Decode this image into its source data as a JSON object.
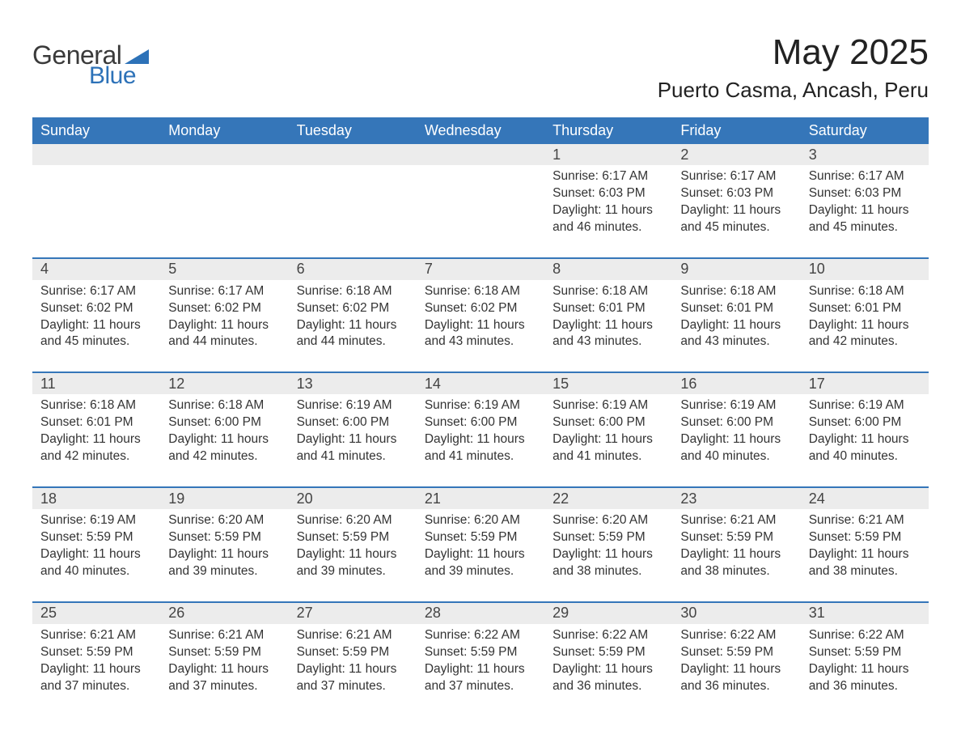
{
  "logo": {
    "text1": "General",
    "text2": "Blue",
    "shape_color": "#2d72b8"
  },
  "title": "May 2025",
  "location": "Puerto Casma, Ancash, Peru",
  "colors": {
    "header_bg": "#3576b9",
    "header_text": "#ffffff",
    "daynum_bg": "#ececec",
    "rule": "#3576b9",
    "body_text": "#333333"
  },
  "weekdays": [
    "Sunday",
    "Monday",
    "Tuesday",
    "Wednesday",
    "Thursday",
    "Friday",
    "Saturday"
  ],
  "weeks": [
    [
      null,
      null,
      null,
      null,
      {
        "n": "1",
        "sr": "6:17 AM",
        "ss": "6:03 PM",
        "dl": "11 hours and 46 minutes."
      },
      {
        "n": "2",
        "sr": "6:17 AM",
        "ss": "6:03 PM",
        "dl": "11 hours and 45 minutes."
      },
      {
        "n": "3",
        "sr": "6:17 AM",
        "ss": "6:03 PM",
        "dl": "11 hours and 45 minutes."
      }
    ],
    [
      {
        "n": "4",
        "sr": "6:17 AM",
        "ss": "6:02 PM",
        "dl": "11 hours and 45 minutes."
      },
      {
        "n": "5",
        "sr": "6:17 AM",
        "ss": "6:02 PM",
        "dl": "11 hours and 44 minutes."
      },
      {
        "n": "6",
        "sr": "6:18 AM",
        "ss": "6:02 PM",
        "dl": "11 hours and 44 minutes."
      },
      {
        "n": "7",
        "sr": "6:18 AM",
        "ss": "6:02 PM",
        "dl": "11 hours and 43 minutes."
      },
      {
        "n": "8",
        "sr": "6:18 AM",
        "ss": "6:01 PM",
        "dl": "11 hours and 43 minutes."
      },
      {
        "n": "9",
        "sr": "6:18 AM",
        "ss": "6:01 PM",
        "dl": "11 hours and 43 minutes."
      },
      {
        "n": "10",
        "sr": "6:18 AM",
        "ss": "6:01 PM",
        "dl": "11 hours and 42 minutes."
      }
    ],
    [
      {
        "n": "11",
        "sr": "6:18 AM",
        "ss": "6:01 PM",
        "dl": "11 hours and 42 minutes."
      },
      {
        "n": "12",
        "sr": "6:18 AM",
        "ss": "6:00 PM",
        "dl": "11 hours and 42 minutes."
      },
      {
        "n": "13",
        "sr": "6:19 AM",
        "ss": "6:00 PM",
        "dl": "11 hours and 41 minutes."
      },
      {
        "n": "14",
        "sr": "6:19 AM",
        "ss": "6:00 PM",
        "dl": "11 hours and 41 minutes."
      },
      {
        "n": "15",
        "sr": "6:19 AM",
        "ss": "6:00 PM",
        "dl": "11 hours and 41 minutes."
      },
      {
        "n": "16",
        "sr": "6:19 AM",
        "ss": "6:00 PM",
        "dl": "11 hours and 40 minutes."
      },
      {
        "n": "17",
        "sr": "6:19 AM",
        "ss": "6:00 PM",
        "dl": "11 hours and 40 minutes."
      }
    ],
    [
      {
        "n": "18",
        "sr": "6:19 AM",
        "ss": "5:59 PM",
        "dl": "11 hours and 40 minutes."
      },
      {
        "n": "19",
        "sr": "6:20 AM",
        "ss": "5:59 PM",
        "dl": "11 hours and 39 minutes."
      },
      {
        "n": "20",
        "sr": "6:20 AM",
        "ss": "5:59 PM",
        "dl": "11 hours and 39 minutes."
      },
      {
        "n": "21",
        "sr": "6:20 AM",
        "ss": "5:59 PM",
        "dl": "11 hours and 39 minutes."
      },
      {
        "n": "22",
        "sr": "6:20 AM",
        "ss": "5:59 PM",
        "dl": "11 hours and 38 minutes."
      },
      {
        "n": "23",
        "sr": "6:21 AM",
        "ss": "5:59 PM",
        "dl": "11 hours and 38 minutes."
      },
      {
        "n": "24",
        "sr": "6:21 AM",
        "ss": "5:59 PM",
        "dl": "11 hours and 38 minutes."
      }
    ],
    [
      {
        "n": "25",
        "sr": "6:21 AM",
        "ss": "5:59 PM",
        "dl": "11 hours and 37 minutes."
      },
      {
        "n": "26",
        "sr": "6:21 AM",
        "ss": "5:59 PM",
        "dl": "11 hours and 37 minutes."
      },
      {
        "n": "27",
        "sr": "6:21 AM",
        "ss": "5:59 PM",
        "dl": "11 hours and 37 minutes."
      },
      {
        "n": "28",
        "sr": "6:22 AM",
        "ss": "5:59 PM",
        "dl": "11 hours and 37 minutes."
      },
      {
        "n": "29",
        "sr": "6:22 AM",
        "ss": "5:59 PM",
        "dl": "11 hours and 36 minutes."
      },
      {
        "n": "30",
        "sr": "6:22 AM",
        "ss": "5:59 PM",
        "dl": "11 hours and 36 minutes."
      },
      {
        "n": "31",
        "sr": "6:22 AM",
        "ss": "5:59 PM",
        "dl": "11 hours and 36 minutes."
      }
    ]
  ],
  "labels": {
    "sunrise": "Sunrise: ",
    "sunset": "Sunset: ",
    "daylight": "Daylight: "
  }
}
